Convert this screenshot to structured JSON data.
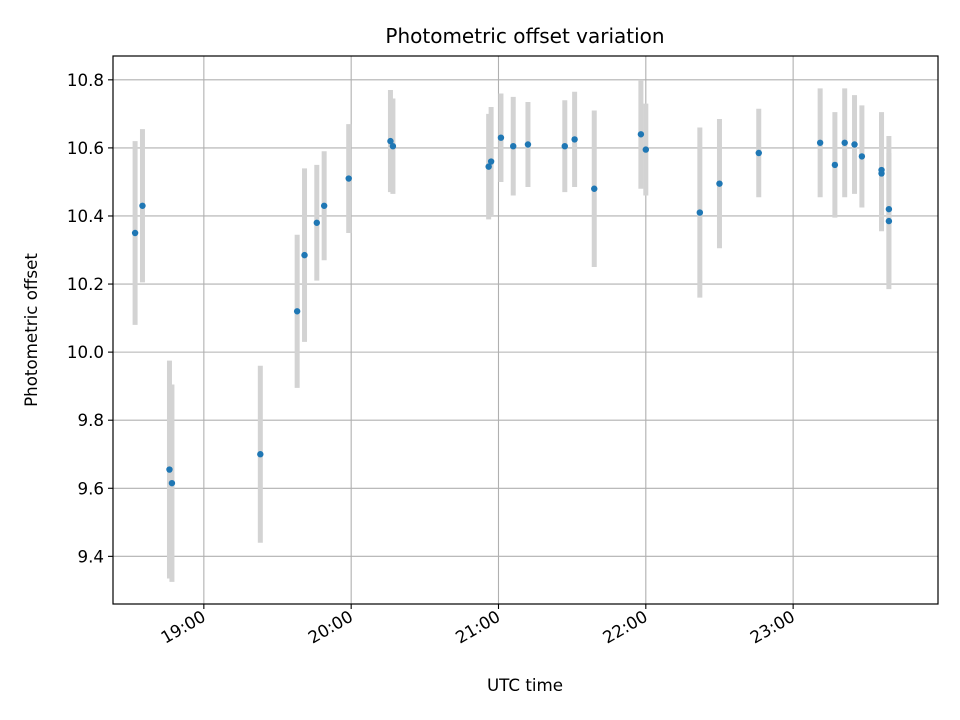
{
  "chart_data": {
    "type": "scatter",
    "title": "Photometric offset variation",
    "xlabel": "UTC time",
    "ylabel": "Photometric offset",
    "x_ticks": [
      "19:00",
      "20:00",
      "21:00",
      "22:00",
      "23:00"
    ],
    "y_ticks": [
      "9.4",
      "9.6",
      "9.8",
      "10.0",
      "10.2",
      "10.4",
      "10.6",
      "10.8"
    ],
    "xlim": [
      "18:23",
      "23:59"
    ],
    "ylim": [
      9.26,
      10.87
    ],
    "grid": true,
    "point_color": "#1f77b4",
    "errorbar_color": "#d3d3d3",
    "points": [
      {
        "time": "18:32",
        "y": 10.35,
        "err": 0.27
      },
      {
        "time": "18:35",
        "y": 10.43,
        "err": 0.225
      },
      {
        "time": "18:46",
        "y": 9.655,
        "err": 0.32
      },
      {
        "time": "18:47",
        "y": 9.615,
        "err": 0.29
      },
      {
        "time": "19:23",
        "y": 9.7,
        "err": 0.26
      },
      {
        "time": "19:38",
        "y": 10.12,
        "err": 0.225
      },
      {
        "time": "19:41",
        "y": 10.285,
        "err": 0.255
      },
      {
        "time": "19:46",
        "y": 10.38,
        "err": 0.17
      },
      {
        "time": "19:49",
        "y": 10.43,
        "err": 0.16
      },
      {
        "time": "19:59",
        "y": 10.51,
        "err": 0.16
      },
      {
        "time": "20:16",
        "y": 10.62,
        "err": 0.15
      },
      {
        "time": "20:17",
        "y": 10.605,
        "err": 0.14
      },
      {
        "time": "20:56",
        "y": 10.545,
        "err": 0.155
      },
      {
        "time": "20:57",
        "y": 10.56,
        "err": 0.16
      },
      {
        "time": "21:01",
        "y": 10.63,
        "err": 0.13
      },
      {
        "time": "21:06",
        "y": 10.605,
        "err": 0.145
      },
      {
        "time": "21:12",
        "y": 10.61,
        "err": 0.125
      },
      {
        "time": "21:27",
        "y": 10.605,
        "err": 0.135
      },
      {
        "time": "21:31",
        "y": 10.625,
        "err": 0.14
      },
      {
        "time": "21:39",
        "y": 10.48,
        "err": 0.23
      },
      {
        "time": "21:58",
        "y": 10.64,
        "err": 0.16
      },
      {
        "time": "22:00",
        "y": 10.595,
        "err": 0.135
      },
      {
        "time": "22:22",
        "y": 10.41,
        "err": 0.25
      },
      {
        "time": "22:30",
        "y": 10.495,
        "err": 0.19
      },
      {
        "time": "22:46",
        "y": 10.585,
        "err": 0.13
      },
      {
        "time": "23:11",
        "y": 10.615,
        "err": 0.16
      },
      {
        "time": "23:17",
        "y": 10.55,
        "err": 0.155
      },
      {
        "time": "23:21",
        "y": 10.615,
        "err": 0.16
      },
      {
        "time": "23:25",
        "y": 10.61,
        "err": 0.145
      },
      {
        "time": "23:28",
        "y": 10.575,
        "err": 0.15
      },
      {
        "time": "23:36",
        "y": 10.535,
        "err": 0.17
      },
      {
        "time": "23:36",
        "y": 10.525,
        "err": 0.17
      },
      {
        "time": "23:39",
        "y": 10.42,
        "err": 0.215
      },
      {
        "time": "23:39",
        "y": 10.385,
        "err": 0.2
      }
    ]
  }
}
